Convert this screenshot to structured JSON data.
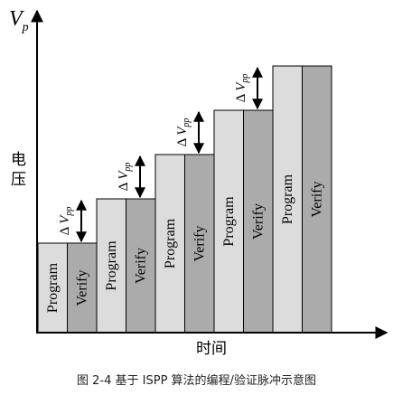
{
  "axes": {
    "y_label_main": "V",
    "y_label_sub": "p",
    "y_title": [
      "电",
      "压"
    ],
    "x_title": "时间"
  },
  "steps": [
    {
      "program": "Program",
      "verify": "Verify",
      "increment": {
        "symbol": "Δ",
        "main": "V",
        "sub": "pp"
      }
    },
    {
      "program": "Program",
      "verify": "Verify",
      "increment": {
        "symbol": "Δ",
        "main": "V",
        "sub": "pp"
      }
    },
    {
      "program": "Program",
      "verify": "Verify",
      "increment": {
        "symbol": "Δ",
        "main": "V",
        "sub": "pp"
      }
    },
    {
      "program": "Program",
      "verify": "Verify",
      "increment": {
        "symbol": "Δ",
        "main": "V",
        "sub": "pp"
      }
    },
    {
      "program": "Program",
      "verify": "Verify",
      "increment": null
    }
  ],
  "colors": {
    "program_fill": "#dcdcdc",
    "verify_fill": "#ababab",
    "stroke": "#000000"
  },
  "caption": "图 2-4 基于 ISPP 算法的编程/验证脉冲示意图"
}
